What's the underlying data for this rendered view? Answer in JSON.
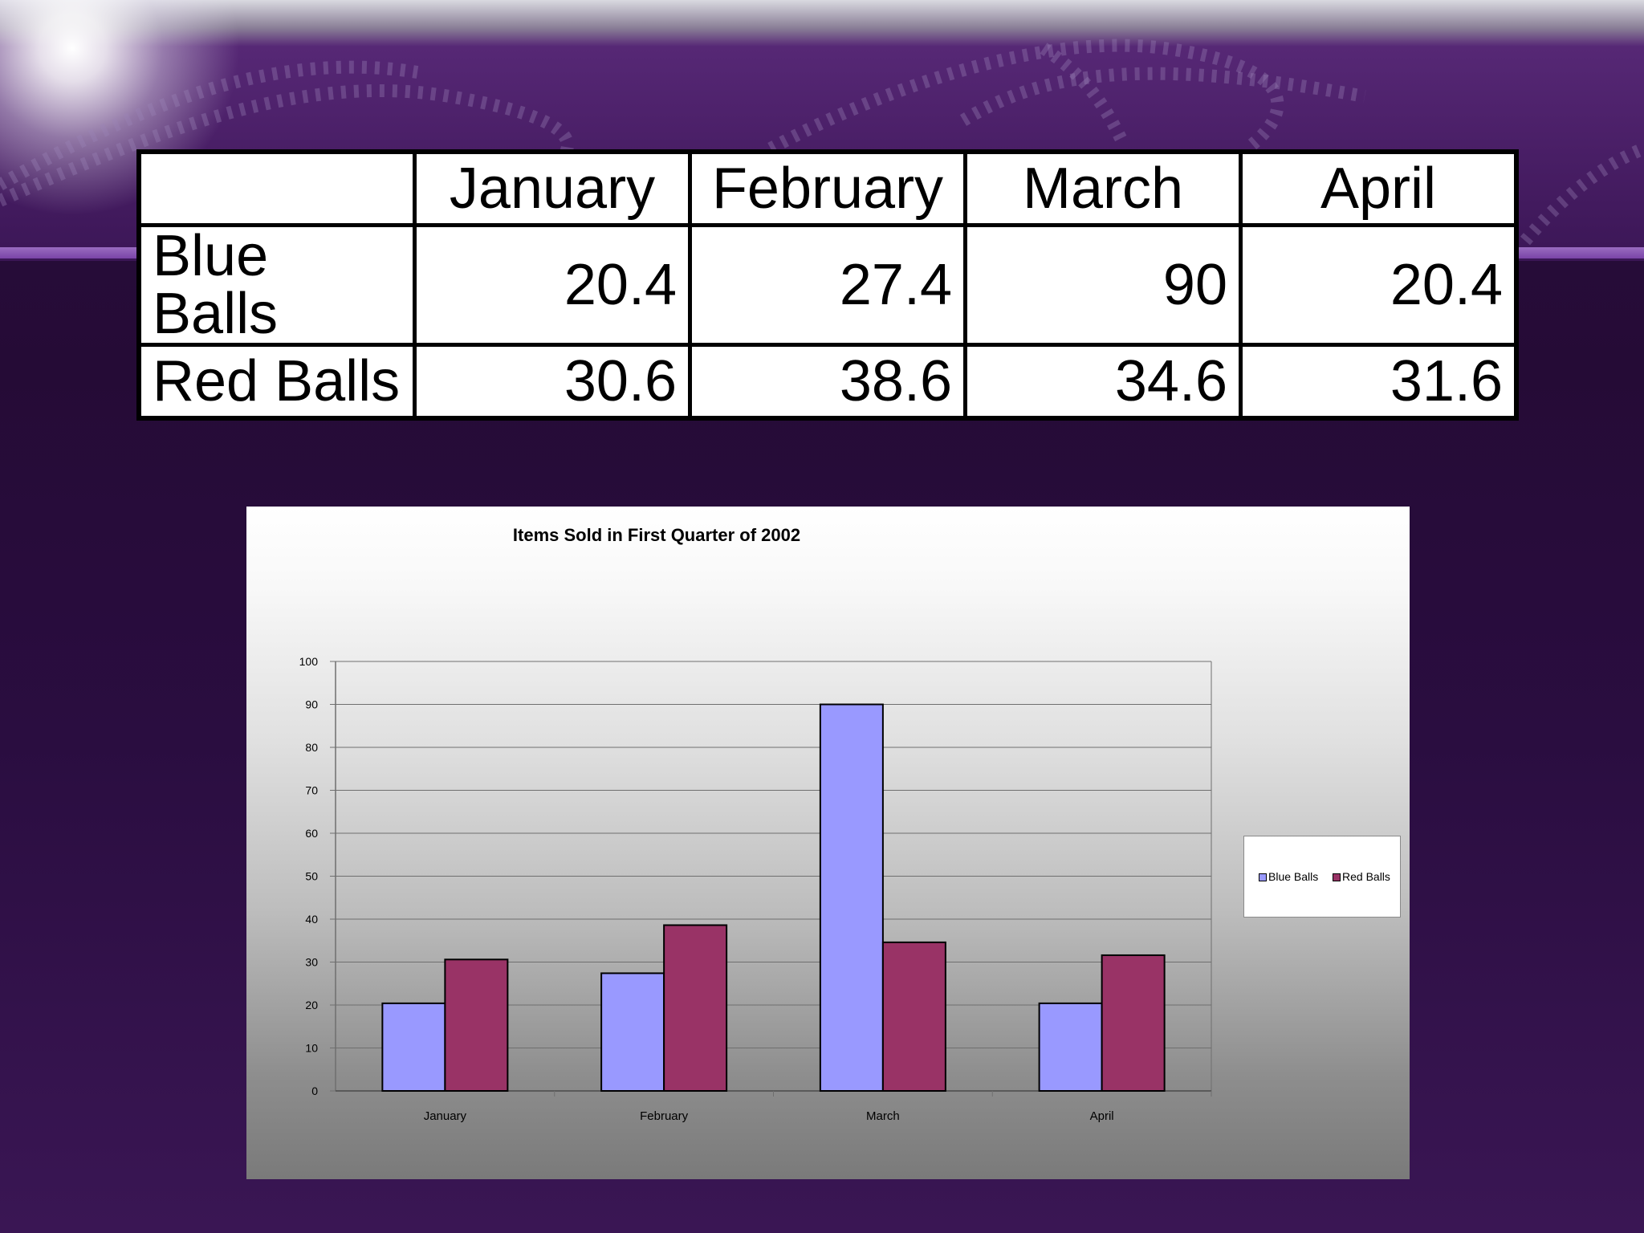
{
  "table": {
    "header": [
      "",
      "January",
      "February",
      "March",
      "April"
    ],
    "rows": [
      {
        "label": "Blue Balls",
        "values": [
          "20.4",
          "27.4",
          "90",
          "20.4"
        ]
      },
      {
        "label": "Red Balls",
        "values": [
          "30.6",
          "38.6",
          "34.6",
          "31.6"
        ]
      }
    ]
  },
  "chart_data": {
    "type": "bar",
    "title": "Items Sold in First Quarter of 2002",
    "xlabel": "",
    "ylabel": "",
    "categories": [
      "January",
      "February",
      "March",
      "April"
    ],
    "series": [
      {
        "name": "Blue Balls",
        "values": [
          20.4,
          27.4,
          90,
          20.4
        ],
        "color": "#9999ff"
      },
      {
        "name": "Red Balls",
        "values": [
          30.6,
          38.6,
          34.6,
          31.6
        ],
        "color": "#993366"
      }
    ],
    "ylim": [
      0,
      100
    ],
    "yticks": [
      0,
      10,
      20,
      30,
      40,
      50,
      60,
      70,
      80,
      90,
      100
    ],
    "grid": true,
    "legend_position": "right"
  },
  "colors": {
    "background": "#2a0d3e",
    "banner": "#4a1f67",
    "accent_stripe": "#7a44a8"
  }
}
